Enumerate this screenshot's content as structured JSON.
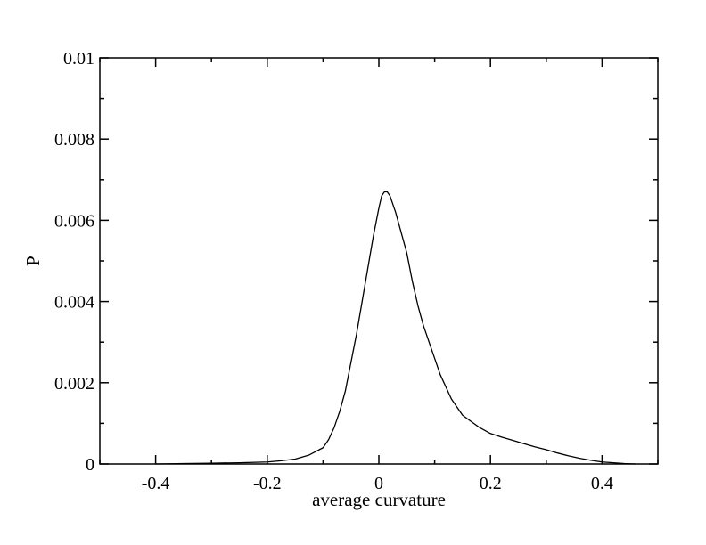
{
  "chart_data": {
    "type": "line",
    "title": "",
    "xlabel": "average curvature",
    "ylabel": "P",
    "xlim": [
      -0.5,
      0.5
    ],
    "ylim": [
      0,
      0.01
    ],
    "grid": false,
    "x_ticks": [
      -0.4,
      -0.2,
      0,
      0.2,
      0.4
    ],
    "x_tick_labels": [
      "-0.4",
      "-0.2",
      "0",
      "0.2",
      "0.4"
    ],
    "y_ticks": [
      0,
      0.002,
      0.004,
      0.006,
      0.008,
      0.01
    ],
    "y_tick_labels": [
      "0",
      "0.002",
      "0.004",
      "0.006",
      "0.008",
      "0.01"
    ],
    "series": [
      {
        "color": "#000000",
        "x": [
          -0.4,
          -0.35,
          -0.3,
          -0.25,
          -0.2,
          -0.175,
          -0.15,
          -0.125,
          -0.1,
          -0.09,
          -0.08,
          -0.07,
          -0.06,
          -0.05,
          -0.04,
          -0.03,
          -0.02,
          -0.01,
          0,
          0.005,
          0.01,
          0.015,
          0.02,
          0.025,
          0.03,
          0.04,
          0.05,
          0.06,
          0.07,
          0.08,
          0.09,
          0.1,
          0.11,
          0.12,
          0.13,
          0.14,
          0.15,
          0.16,
          0.17,
          0.18,
          0.2,
          0.22,
          0.24,
          0.26,
          0.28,
          0.3,
          0.32,
          0.34,
          0.36,
          0.38,
          0.4,
          0.42,
          0.44,
          0.46
        ],
        "y": [
          0,
          1e-05,
          2e-05,
          3e-05,
          5e-05,
          8e-05,
          0.00012,
          0.00022,
          0.0004,
          0.0006,
          0.0009,
          0.0013,
          0.0018,
          0.0025,
          0.0032,
          0.004,
          0.0048,
          0.0056,
          0.0063,
          0.0066,
          0.0067,
          0.0067,
          0.0066,
          0.0064,
          0.0062,
          0.0057,
          0.0052,
          0.0045,
          0.0039,
          0.0034,
          0.003,
          0.0026,
          0.0022,
          0.0019,
          0.0016,
          0.0014,
          0.0012,
          0.0011,
          0.001,
          0.0009,
          0.00075,
          0.00066,
          0.00058,
          0.0005,
          0.00042,
          0.00035,
          0.00027,
          0.0002,
          0.00014,
          9e-05,
          5e-05,
          3e-05,
          1e-05,
          0
        ]
      }
    ]
  }
}
